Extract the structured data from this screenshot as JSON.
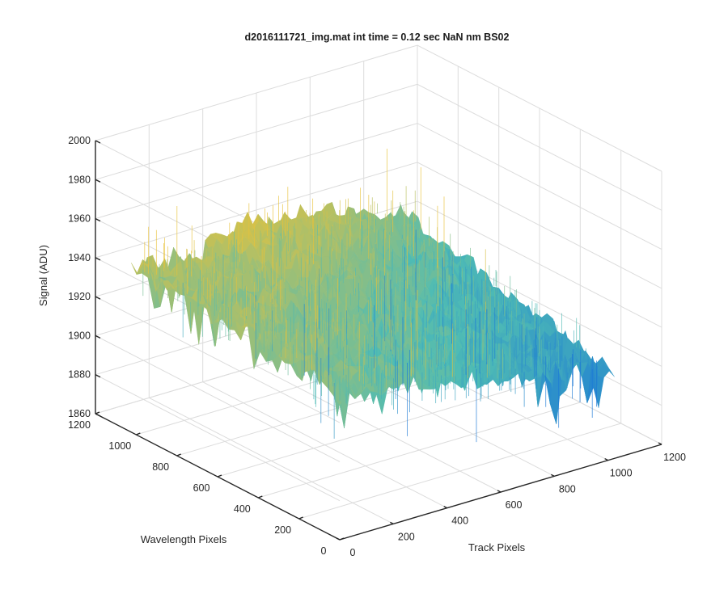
{
  "chart_data": {
    "type": "surface",
    "title": "d2016111721_img.mat int time = 0.12 sec  NaN nm BS02",
    "xlabel": "Track Pixels",
    "ylabel": "Wavelength Pixels",
    "zlabel": "Signal (ADU)",
    "x_ticks": [
      "0",
      "200",
      "400",
      "600",
      "800",
      "1000",
      "1200"
    ],
    "y_ticks": [
      "0",
      "200",
      "400",
      "600",
      "800",
      "1000",
      "1200"
    ],
    "z_ticks": [
      "1860",
      "1880",
      "1900",
      "1920",
      "1940",
      "1960",
      "1980",
      "2000"
    ],
    "xlim": [
      0,
      1200
    ],
    "ylim": [
      0,
      1200
    ],
    "zlim": [
      1860,
      2000
    ],
    "x_extent": [
      0,
      1024
    ],
    "y_extent": [
      0,
      1024
    ],
    "grid": true,
    "colormap": "parula",
    "colors": {
      "low": "#1a78d6",
      "mid": "#4fbcb4",
      "high": "#e8c23a"
    },
    "surface_rows": [
      {
        "wavelength_pixel": 0,
        "track_profile": [
          1935,
          1931,
          1927,
          1923,
          1918,
          1915,
          1910,
          1905
        ]
      },
      {
        "wavelength_pixel": 512,
        "track_profile": [
          1940,
          1937,
          1935,
          1932,
          1928,
          1925,
          1920,
          1915
        ]
      },
      {
        "wavelength_pixel": 1024,
        "track_profile": [
          1945,
          1943,
          1945,
          1950,
          1947,
          1942,
          1937,
          1930
        ]
      }
    ],
    "track_profile_x": [
      0,
      146,
      293,
      439,
      585,
      731,
      878,
      1024
    ]
  }
}
